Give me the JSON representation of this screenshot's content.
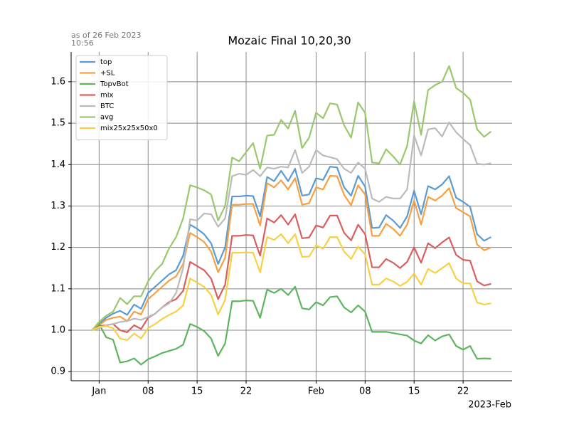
{
  "chart_data": {
    "type": "line",
    "title": "Mozaic Final 10,20,30",
    "annotation": [
      "as of 26 Feb 2023",
      "10:56"
    ],
    "x_offset_label": "2023-Feb",
    "x": [
      "2022-12-31",
      "2023-01-01",
      "2023-01-02",
      "2023-01-03",
      "2023-01-04",
      "2023-01-05",
      "2023-01-06",
      "2023-01-07",
      "2023-01-08",
      "2023-01-09",
      "2023-01-10",
      "2023-01-11",
      "2023-01-12",
      "2023-01-13",
      "2023-01-14",
      "2023-01-15",
      "2023-01-16",
      "2023-01-17",
      "2023-01-18",
      "2023-01-19",
      "2023-01-20",
      "2023-01-21",
      "2023-01-22",
      "2023-01-23",
      "2023-01-24",
      "2023-01-25",
      "2023-01-26",
      "2023-01-27",
      "2023-01-28",
      "2023-01-29",
      "2023-01-30",
      "2023-01-31",
      "2023-02-01",
      "2023-02-02",
      "2023-02-03",
      "2023-02-04",
      "2023-02-05",
      "2023-02-06",
      "2023-02-07",
      "2023-02-08",
      "2023-02-09",
      "2023-02-10",
      "2023-02-11",
      "2023-02-12",
      "2023-02-13",
      "2023-02-14",
      "2023-02-15",
      "2023-02-16",
      "2023-02-17",
      "2023-02-18",
      "2023-02-19",
      "2023-02-20",
      "2023-02-21",
      "2023-02-22",
      "2023-02-23",
      "2023-02-24",
      "2023-02-25",
      "2023-02-26"
    ],
    "series": [
      {
        "name": "top",
        "color": "#5a9bd4",
        "values": [
          1.0,
          1.015,
          1.03,
          1.04,
          1.047,
          1.037,
          1.062,
          1.052,
          1.09,
          1.105,
          1.12,
          1.135,
          1.145,
          1.18,
          1.255,
          1.245,
          1.232,
          1.21,
          1.16,
          1.2,
          1.323,
          1.323,
          1.325,
          1.324,
          1.275,
          1.37,
          1.36,
          1.385,
          1.36,
          1.39,
          1.325,
          1.328,
          1.367,
          1.363,
          1.395,
          1.393,
          1.345,
          1.325,
          1.373,
          1.347,
          1.247,
          1.248,
          1.278,
          1.265,
          1.247,
          1.275,
          1.337,
          1.28,
          1.348,
          1.34,
          1.352,
          1.372,
          1.32,
          1.31,
          1.298,
          1.232,
          1.216,
          1.225
        ]
      },
      {
        "name": "+SL",
        "color": "#f7a043",
        "values": [
          1.0,
          1.012,
          1.025,
          1.03,
          1.033,
          1.022,
          1.045,
          1.038,
          1.075,
          1.09,
          1.105,
          1.12,
          1.13,
          1.16,
          1.235,
          1.225,
          1.213,
          1.19,
          1.14,
          1.175,
          1.303,
          1.303,
          1.305,
          1.305,
          1.253,
          1.355,
          1.345,
          1.362,
          1.34,
          1.367,
          1.303,
          1.307,
          1.345,
          1.34,
          1.373,
          1.372,
          1.327,
          1.302,
          1.35,
          1.328,
          1.228,
          1.228,
          1.257,
          1.245,
          1.228,
          1.255,
          1.313,
          1.255,
          1.322,
          1.313,
          1.325,
          1.343,
          1.295,
          1.285,
          1.275,
          1.207,
          1.193,
          1.2
        ]
      },
      {
        "name": "TopvBot",
        "color": "#5fb55f",
        "values": [
          1.0,
          1.015,
          0.983,
          0.977,
          0.922,
          0.925,
          0.932,
          0.917,
          0.93,
          0.937,
          0.945,
          0.95,
          0.955,
          0.965,
          1.015,
          1.008,
          0.998,
          0.98,
          0.938,
          0.968,
          1.07,
          1.07,
          1.072,
          1.071,
          1.03,
          1.098,
          1.09,
          1.1,
          1.085,
          1.105,
          1.053,
          1.05,
          1.068,
          1.06,
          1.08,
          1.082,
          1.055,
          1.043,
          1.06,
          1.045,
          0.996,
          0.996,
          0.996,
          0.993,
          0.99,
          0.987,
          0.975,
          0.968,
          0.988,
          0.975,
          0.985,
          0.99,
          0.962,
          0.953,
          0.962,
          0.931,
          0.932,
          0.931
        ]
      },
      {
        "name": "mix",
        "color": "#d95f5f",
        "values": [
          1.0,
          1.01,
          1.012,
          1.015,
          1.0,
          0.995,
          1.012,
          1.003,
          1.03,
          1.04,
          1.055,
          1.068,
          1.075,
          1.095,
          1.165,
          1.155,
          1.145,
          1.125,
          1.075,
          1.11,
          1.228,
          1.228,
          1.23,
          1.229,
          1.18,
          1.27,
          1.26,
          1.278,
          1.255,
          1.28,
          1.222,
          1.224,
          1.253,
          1.248,
          1.277,
          1.277,
          1.235,
          1.217,
          1.255,
          1.232,
          1.152,
          1.152,
          1.172,
          1.163,
          1.15,
          1.165,
          1.2,
          1.163,
          1.21,
          1.198,
          1.212,
          1.224,
          1.182,
          1.17,
          1.168,
          1.118,
          1.108,
          1.112
        ]
      },
      {
        "name": "BTC",
        "color": "#bbbbbb",
        "values": [
          1.0,
          1.005,
          1.012,
          1.015,
          1.02,
          1.022,
          1.028,
          1.025,
          1.032,
          1.04,
          1.055,
          1.065,
          1.09,
          1.15,
          1.268,
          1.265,
          1.282,
          1.28,
          1.25,
          1.27,
          1.372,
          1.378,
          1.375,
          1.387,
          1.372,
          1.393,
          1.39,
          1.395,
          1.393,
          1.435,
          1.38,
          1.395,
          1.435,
          1.422,
          1.418,
          1.413,
          1.39,
          1.38,
          1.405,
          1.39,
          1.318,
          1.31,
          1.322,
          1.318,
          1.318,
          1.34,
          1.47,
          1.422,
          1.485,
          1.488,
          1.468,
          1.502,
          1.478,
          1.462,
          1.447,
          1.402,
          1.4,
          1.403
        ]
      },
      {
        "name": "avg",
        "color": "#9ac76f",
        "values": [
          1.0,
          1.02,
          1.035,
          1.045,
          1.078,
          1.063,
          1.082,
          1.082,
          1.118,
          1.143,
          1.16,
          1.198,
          1.225,
          1.27,
          1.35,
          1.345,
          1.338,
          1.328,
          1.265,
          1.3,
          1.417,
          1.408,
          1.43,
          1.452,
          1.39,
          1.47,
          1.472,
          1.508,
          1.487,
          1.53,
          1.44,
          1.465,
          1.525,
          1.512,
          1.548,
          1.545,
          1.495,
          1.465,
          1.55,
          1.525,
          1.405,
          1.403,
          1.437,
          1.42,
          1.4,
          1.445,
          1.553,
          1.472,
          1.58,
          1.592,
          1.6,
          1.638,
          1.585,
          1.573,
          1.557,
          1.485,
          1.467,
          1.48
        ]
      },
      {
        "name": "mix25x25x50x0",
        "color": "#f9d045",
        "values": [
          1.0,
          1.008,
          1.01,
          1.005,
          0.98,
          0.976,
          0.992,
          0.98,
          1.005,
          1.015,
          1.027,
          1.037,
          1.045,
          1.06,
          1.125,
          1.115,
          1.105,
          1.085,
          1.038,
          1.073,
          1.187,
          1.187,
          1.188,
          1.187,
          1.14,
          1.225,
          1.218,
          1.232,
          1.21,
          1.232,
          1.177,
          1.178,
          1.205,
          1.197,
          1.225,
          1.225,
          1.19,
          1.172,
          1.202,
          1.183,
          1.11,
          1.11,
          1.125,
          1.118,
          1.107,
          1.117,
          1.137,
          1.11,
          1.148,
          1.138,
          1.15,
          1.162,
          1.125,
          1.113,
          1.113,
          1.067,
          1.062,
          1.065
        ]
      }
    ],
    "xlim": [
      "2022-12-28",
      "2023-03-01"
    ],
    "xticks": [
      {
        "value": "2023-01-01",
        "label": "Jan"
      },
      {
        "value": "2023-01-08",
        "label": "08"
      },
      {
        "value": "2023-01-15",
        "label": "15"
      },
      {
        "value": "2023-01-22",
        "label": "22"
      },
      {
        "value": "2023-02-01",
        "label": "Feb"
      },
      {
        "value": "2023-02-08",
        "label": "08"
      },
      {
        "value": "2023-02-15",
        "label": "15"
      },
      {
        "value": "2023-02-22",
        "label": "22"
      }
    ],
    "ylim": [
      0.878,
      1.672
    ],
    "yticks": [
      {
        "value": 0.9,
        "label": "0.9"
      },
      {
        "value": 1.0,
        "label": "1.0"
      },
      {
        "value": 1.1,
        "label": "1.1"
      },
      {
        "value": 1.2,
        "label": "1.2"
      },
      {
        "value": 1.3,
        "label": "1.3"
      },
      {
        "value": 1.4,
        "label": "1.4"
      },
      {
        "value": 1.5,
        "label": "1.5"
      },
      {
        "value": 1.6,
        "label": "1.6"
      }
    ],
    "grid": true,
    "legend": "upper left"
  }
}
